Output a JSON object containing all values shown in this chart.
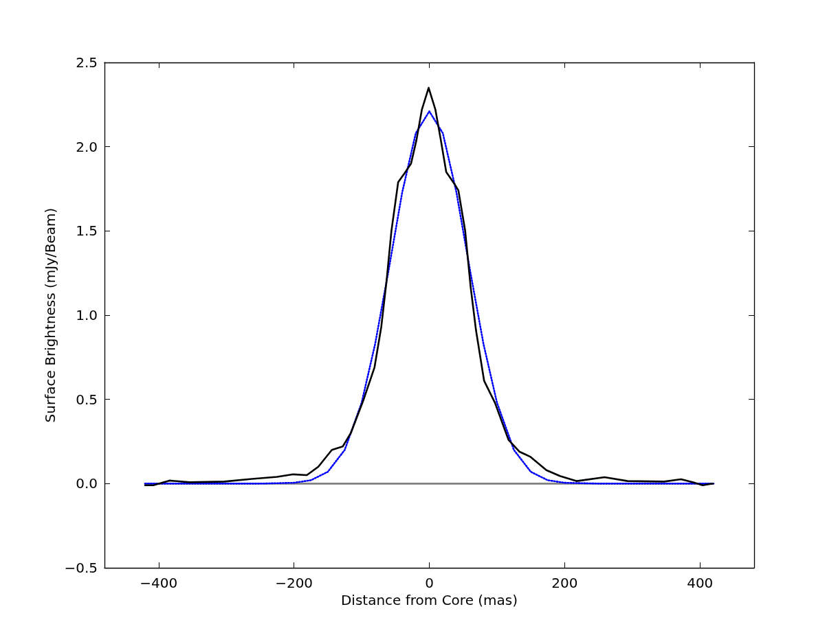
{
  "chart_data": {
    "type": "line",
    "xlabel": "Distance from Core (mas)",
    "ylabel": "Surface Brightness (mJy/Beam)",
    "xlim": [
      -480,
      480
    ],
    "ylim": [
      -0.5,
      2.5
    ],
    "xticks": [
      {
        "value": -400,
        "label": "−400"
      },
      {
        "value": -200,
        "label": "−200"
      },
      0,
      200,
      400
    ],
    "yticks": [
      {
        "value": -0.5,
        "label": "−0.5"
      },
      {
        "value": 0,
        "label": "0.0"
      },
      0.5,
      {
        "value": 1,
        "label": "1.0"
      },
      1.5,
      {
        "value": 2,
        "label": "2.0"
      },
      2.5
    ],
    "grid": false,
    "marker": "none",
    "series": [
      {
        "color": "#808080",
        "line_style": "solid",
        "x": [
          -420,
          420
        ],
        "values": [
          0,
          0
        ]
      },
      {
        "color": "#0000ff",
        "line_style": "dotted",
        "x": [
          -420,
          -300,
          -250,
          -200,
          -175,
          -150,
          -125,
          -100,
          -80,
          -60,
          -40,
          -20,
          0,
          20,
          40,
          60,
          80,
          100,
          125,
          150,
          175,
          200,
          250,
          300,
          420
        ],
        "values": [
          0,
          0,
          0,
          0.005,
          0.02,
          0.07,
          0.2,
          0.48,
          0.83,
          1.27,
          1.73,
          2.08,
          2.21,
          2.08,
          1.73,
          1.27,
          0.83,
          0.48,
          0.2,
          0.07,
          0.02,
          0.005,
          0,
          0,
          0
        ]
      },
      {
        "color": "#000000",
        "line_style": "solid",
        "x": [
          -420,
          -408,
          -384,
          -354,
          -303,
          -262,
          -225,
          -201,
          -181,
          -164,
          -144,
          -128,
          -116,
          -97,
          -81,
          -71,
          -63,
          -56,
          -46,
          -37,
          -27,
          -19,
          -11,
          -1,
          9,
          17,
          25,
          37,
          43,
          53,
          61,
          69,
          81,
          97,
          117,
          133,
          149,
          173,
          193,
          218,
          259,
          293,
          347,
          372,
          391,
          404,
          419
        ],
        "values": [
          -0.01,
          -0.01,
          0.018,
          0.008,
          0.012,
          0.028,
          0.04,
          0.055,
          0.05,
          0.1,
          0.2,
          0.22,
          0.3,
          0.5,
          0.69,
          0.93,
          1.21,
          1.5,
          1.79,
          1.84,
          1.9,
          2.04,
          2.22,
          2.35,
          2.22,
          2.04,
          1.85,
          1.78,
          1.74,
          1.5,
          1.17,
          0.91,
          0.61,
          0.48,
          0.26,
          0.19,
          0.16,
          0.08,
          0.045,
          0.015,
          0.038,
          0.015,
          0.012,
          0.026,
          0.006,
          -0.01,
          0
        ]
      }
    ]
  }
}
